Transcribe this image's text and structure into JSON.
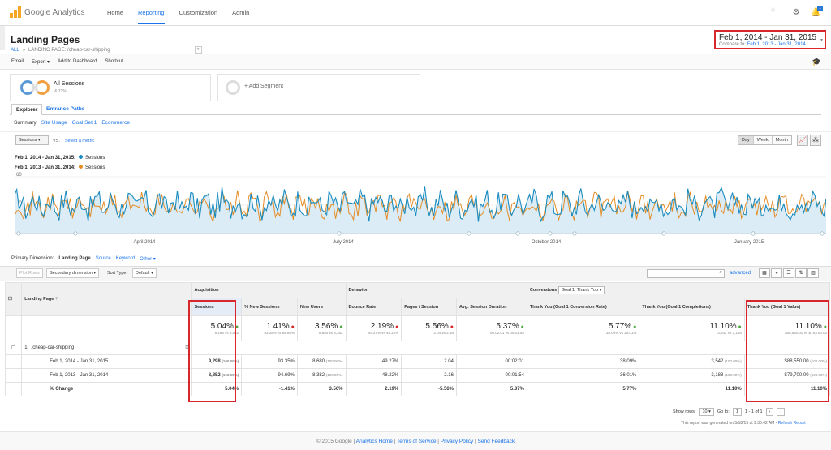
{
  "topbar": {
    "logo_text": "Google Analytics",
    "nav": [
      "Home",
      "Reporting",
      "Customization",
      "Admin"
    ],
    "active": "Reporting",
    "notif_count": "1"
  },
  "page": {
    "title": "Landing Pages",
    "crumb_all": "ALL",
    "crumb_sep": "»",
    "crumb_dim": "LANDING PAGE: /cheap-car-shipping"
  },
  "date": {
    "range": "Feb 1, 2014 - Jan 31, 2015",
    "compare_label": "Compare to:",
    "compare_range": "Feb 1, 2013 - Jan 31, 2014"
  },
  "toolbar": [
    "Email",
    "Export ▾",
    "Add to Dashboard",
    "Shortcut"
  ],
  "segments": {
    "name": "All Sessions",
    "pct": "-6.72%",
    "add": "+ Add Segment"
  },
  "tabs": {
    "explorer": "Explorer",
    "entrance": "Entrance Paths"
  },
  "subtabs": [
    "Summary",
    "Site Usage",
    "Goal Set 1",
    "Ecommerce"
  ],
  "chartctl": {
    "metric": "Sessions",
    "vs": "VS.",
    "select": "Select a metric",
    "periods": [
      "Day",
      "Week",
      "Month"
    ]
  },
  "legend": [
    {
      "range": "Feb 1, 2014 - Jan 31, 2015:",
      "name": "Sessions",
      "color": "#1a8cbf"
    },
    {
      "range": "Feb 1, 2013 - Jan 31, 2014:",
      "name": "Sessions",
      "color": "#e48c24"
    }
  ],
  "chart_data": {
    "type": "line",
    "ylim": [
      0,
      60
    ],
    "yticks": [
      "60",
      "30"
    ],
    "x_labels": [
      "April 2014",
      "July 2014",
      "October 2014",
      "January 2015"
    ],
    "series": [
      {
        "name": "Sessions",
        "period": "Feb 1, 2014 - Jan 31, 2015",
        "color": "#1a8cbf",
        "fill": true
      },
      {
        "name": "Sessions",
        "period": "Feb 1, 2013 - Jan 31, 2014",
        "color": "#e48c24",
        "fill": false
      }
    ],
    "points_per_series": 365
  },
  "dimension": {
    "label": "Primary Dimension:",
    "active": "Landing Page",
    "others": [
      "Source",
      "Keyword",
      "Other ▾"
    ]
  },
  "tabletools": {
    "plot": "Plot Rows",
    "secondary": "Secondary dimension ▾",
    "sort_label": "Sort Type:",
    "sort_value": "Default ▾",
    "advanced": "advanced"
  },
  "table": {
    "groups": {
      "acq": "Acquisition",
      "beh": "Behavior",
      "conv": "Conversions",
      "goal": "Goal 1: Thank You ▾"
    },
    "col_landing": "Landing Page",
    "columns": [
      "Sessions",
      "% New Sessions",
      "New Users",
      "Bounce Rate",
      "Pages / Session",
      "Avg. Session Duration",
      "Thank You (Goal 1 Conversion Rate)",
      "Thank You (Goal 1 Completions)",
      "Thank You (Goal 1 Value)"
    ],
    "totals": [
      {
        "v": "5.04%",
        "dir": "up",
        "s": "9,298 vs 8,852"
      },
      {
        "v": "1.41%",
        "dir": "dn",
        "s": "93.35% vs 94.69%"
      },
      {
        "v": "3.56%",
        "dir": "up",
        "s": "8,680 vs 8,382"
      },
      {
        "v": "2.19%",
        "dir": "dn",
        "s": "49.27% vs 48.22%"
      },
      {
        "v": "5.56%",
        "dir": "dn",
        "s": "2.04 vs 2.16"
      },
      {
        "v": "5.37%",
        "dir": "up",
        "s": "00:02:01 vs 00:01:54"
      },
      {
        "v": "5.77%",
        "dir": "up",
        "s": "38.09% vs 36.01%"
      },
      {
        "v": "11.10%",
        "dir": "up",
        "s": "3,542 vs 3,188"
      },
      {
        "v": "11.10%",
        "dir": "up",
        "s": "$88,550.00 vs $79,700.00"
      }
    ],
    "row_num": "1.",
    "row_page": "/cheap-car-shipping",
    "rows": [
      {
        "label": "Feb 1, 2014 - Jan 31, 2015",
        "cells": [
          [
            "9,298",
            "(100.00%)"
          ],
          [
            "93.35%",
            ""
          ],
          [
            "8,680",
            "(100.00%)"
          ],
          [
            "49.27%",
            ""
          ],
          [
            "2.04",
            ""
          ],
          [
            "00:02:01",
            ""
          ],
          [
            "38.09%",
            ""
          ],
          [
            "3,542",
            "(100.00%)"
          ],
          [
            "$88,550.00",
            "(100.00%)"
          ]
        ]
      },
      {
        "label": "Feb 1, 2013 - Jan 31, 2014",
        "cells": [
          [
            "8,852",
            "(100.00%)"
          ],
          [
            "94.69%",
            ""
          ],
          [
            "8,382",
            "(100.00%)"
          ],
          [
            "48.22%",
            ""
          ],
          [
            "2.16",
            ""
          ],
          [
            "00:01:54",
            ""
          ],
          [
            "36.01%",
            ""
          ],
          [
            "3,188",
            "(100.00%)"
          ],
          [
            "$79,700.00",
            "(100.00%)"
          ]
        ]
      },
      {
        "label": "% Change",
        "cells": [
          [
            "5.04%",
            ""
          ],
          [
            "-1.41%",
            ""
          ],
          [
            "3.56%",
            ""
          ],
          [
            "2.19%",
            ""
          ],
          [
            "-5.56%",
            ""
          ],
          [
            "5.37%",
            ""
          ],
          [
            "5.77%",
            ""
          ],
          [
            "11.10%",
            ""
          ],
          [
            "11.10%",
            ""
          ]
        ]
      }
    ]
  },
  "pager": {
    "show": "Show rows:",
    "rows": "10",
    "goto": "Go to:",
    "page": "1",
    "range": "1 - 1 of 1"
  },
  "generated": {
    "text": "This report was generated on 5/18/15 at 9:36:42 AM -",
    "refresh": "Refresh Report"
  },
  "footer": {
    "copy": "© 2015 Google",
    "links": [
      "Analytics Home",
      "Terms of Service",
      "Privacy Policy",
      "Send Feedback"
    ]
  }
}
